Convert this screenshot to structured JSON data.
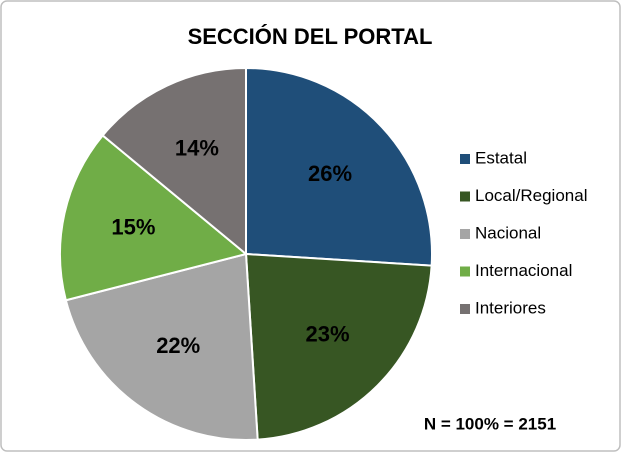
{
  "chart_data": {
    "type": "pie",
    "title": "SECCIÓN DEL PORTAL",
    "categories": [
      "Estatal",
      "Local/Regional",
      "Nacional",
      "Internacional",
      "Interiores"
    ],
    "values": [
      26,
      23,
      22,
      15,
      14
    ],
    "value_labels": [
      "26%",
      "23%",
      "22%",
      "15%",
      "14%"
    ],
    "colors": [
      "#1f4e79",
      "#375623",
      "#a5a5a5",
      "#70ad47",
      "#767171"
    ],
    "legend": "right",
    "annotation": "N = 100% = 2151"
  }
}
